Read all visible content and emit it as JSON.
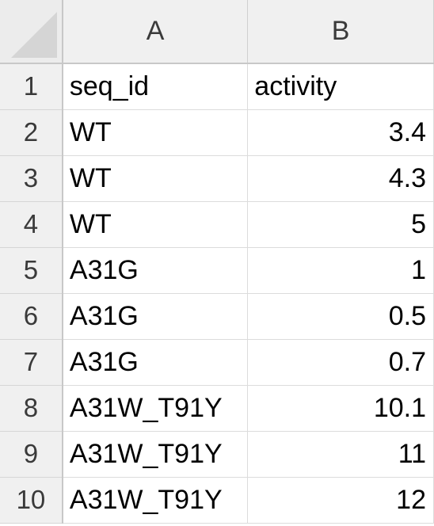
{
  "columns": [
    "A",
    "B"
  ],
  "rows": [
    {
      "num": "1",
      "a": "seq_id",
      "b": "activity"
    },
    {
      "num": "2",
      "a": "WT",
      "b": "3.4"
    },
    {
      "num": "3",
      "a": "WT",
      "b": "4.3"
    },
    {
      "num": "4",
      "a": "WT",
      "b": "5"
    },
    {
      "num": "5",
      "a": "A31G",
      "b": "1"
    },
    {
      "num": "6",
      "a": "A31G",
      "b": "0.5"
    },
    {
      "num": "7",
      "a": "A31G",
      "b": "0.7"
    },
    {
      "num": "8",
      "a": "A31W_T91Y",
      "b": "10.1"
    },
    {
      "num": "9",
      "a": "A31W_T91Y",
      "b": "11"
    },
    {
      "num": "10",
      "a": "A31W_T91Y",
      "b": "12"
    }
  ],
  "colors": {
    "header_bg": "#f0f0f0",
    "grid_line": "#dcdcdc",
    "corner_triangle": "#d5d5d5"
  }
}
